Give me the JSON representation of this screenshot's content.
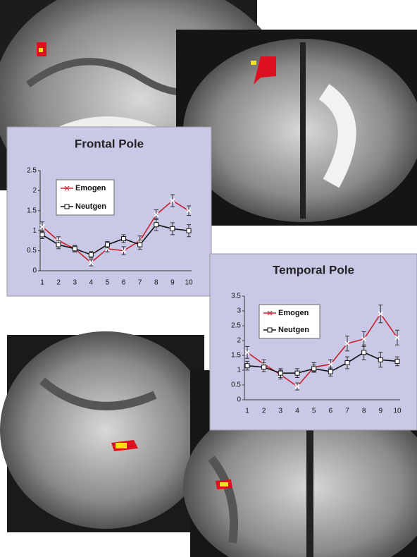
{
  "chart_data": [
    {
      "type": "line",
      "title": "Frontal Pole",
      "categories": [
        "1",
        "2",
        "3",
        "4",
        "5",
        "6",
        "7",
        "8",
        "9",
        "10"
      ],
      "ylim": [
        0,
        2.5
      ],
      "yticks": [
        0,
        0.5,
        1,
        1.5,
        2,
        2.5
      ],
      "series": [
        {
          "name": "Emogen",
          "color": "#c8202a",
          "marker": "x",
          "values": [
            1.1,
            0.75,
            0.55,
            0.2,
            0.55,
            0.5,
            0.75,
            1.4,
            1.75,
            1.5
          ],
          "errors": [
            0.12,
            0.1,
            0.08,
            0.08,
            0.08,
            0.1,
            0.12,
            0.12,
            0.15,
            0.12
          ]
        },
        {
          "name": "Neutgen",
          "color": "#111111",
          "marker": "square",
          "values": [
            0.9,
            0.65,
            0.55,
            0.4,
            0.65,
            0.8,
            0.65,
            1.15,
            1.05,
            1.0
          ],
          "errors": [
            0.1,
            0.1,
            0.08,
            0.08,
            0.08,
            0.1,
            0.12,
            0.15,
            0.15,
            0.15
          ]
        }
      ]
    },
    {
      "type": "line",
      "title": "Temporal Pole",
      "categories": [
        "1",
        "2",
        "3",
        "4",
        "5",
        "6",
        "7",
        "8",
        "9",
        "10"
      ],
      "ylim": [
        0,
        3.5
      ],
      "yticks": [
        0,
        0.5,
        1,
        1.5,
        2,
        2.5,
        3,
        3.5
      ],
      "series": [
        {
          "name": "Emogen",
          "color": "#c8202a",
          "marker": "x",
          "values": [
            1.6,
            1.2,
            0.85,
            0.45,
            1.1,
            1.2,
            1.9,
            2.05,
            2.9,
            2.1
          ],
          "errors": [
            0.2,
            0.15,
            0.15,
            0.12,
            0.15,
            0.15,
            0.25,
            0.25,
            0.3,
            0.25
          ]
        },
        {
          "name": "Neutgen",
          "color": "#111111",
          "marker": "square",
          "values": [
            1.15,
            1.1,
            0.9,
            0.9,
            1.05,
            0.95,
            1.25,
            1.6,
            1.35,
            1.3
          ],
          "errors": [
            0.15,
            0.15,
            0.15,
            0.15,
            0.12,
            0.15,
            0.2,
            0.25,
            0.25,
            0.15
          ]
        }
      ]
    }
  ]
}
